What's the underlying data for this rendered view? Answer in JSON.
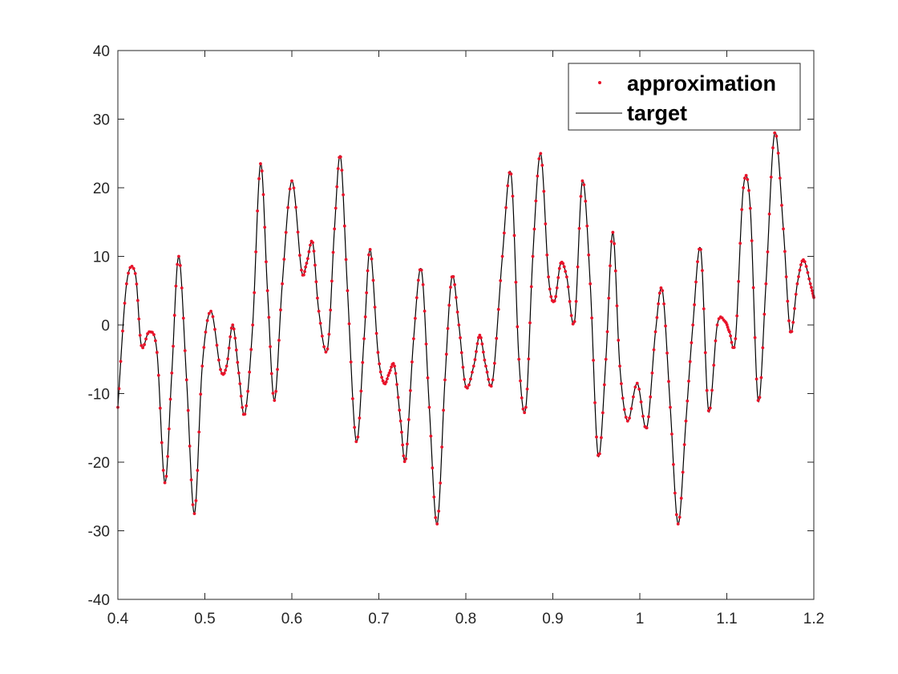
{
  "chart_data": {
    "type": "line",
    "title": "",
    "xlabel": "",
    "ylabel": "",
    "xlim": [
      0.4,
      1.2
    ],
    "ylim": [
      -40,
      40
    ],
    "x_ticks": [
      "0.4",
      "0.5",
      "0.6",
      "0.7",
      "0.8",
      "0.9",
      "1",
      "1.1",
      "1.2"
    ],
    "y_ticks": [
      "-40",
      "-30",
      "-20",
      "-10",
      "0",
      "10",
      "20",
      "30",
      "40"
    ],
    "grid": false,
    "legend_position": "top-right",
    "series": [
      {
        "name": "approximation",
        "style": "markers",
        "color": "#e8132a",
        "x": [
          0.4,
          0.41,
          0.42,
          0.427,
          0.436,
          0.445,
          0.454,
          0.462,
          0.47,
          0.479,
          0.488,
          0.497,
          0.507,
          0.518,
          0.525,
          0.532,
          0.539,
          0.546,
          0.555,
          0.564,
          0.572,
          0.58,
          0.589,
          0.6,
          0.611,
          0.617,
          0.624,
          0.631,
          0.641,
          0.649,
          0.656,
          0.664,
          0.674,
          0.683,
          0.69,
          0.699,
          0.706,
          0.712,
          0.718,
          0.725,
          0.731,
          0.74,
          0.749,
          0.758,
          0.767,
          0.776,
          0.784,
          0.792,
          0.8,
          0.809,
          0.816,
          0.823,
          0.831,
          0.842,
          0.852,
          0.861,
          0.869,
          0.877,
          0.886,
          0.895,
          0.902,
          0.909,
          0.916,
          0.925,
          0.934,
          0.943,
          0.952,
          0.961,
          0.969,
          0.977,
          0.986,
          0.997,
          1.008,
          1.018,
          1.026,
          1.035,
          1.044,
          1.053,
          1.061,
          1.07,
          1.079,
          1.089,
          1.098,
          1.103,
          1.11,
          1.119,
          1.127,
          1.136,
          1.145,
          1.155,
          1.165,
          1.173,
          1.181,
          1.188,
          1.196,
          1.2
        ],
        "y": [
          -12,
          6,
          7.5,
          -3,
          -1,
          -4,
          -23,
          -7,
          10,
          -8,
          -27.5,
          -6,
          2,
          -6.5,
          -6,
          0,
          -7,
          -13,
          0,
          23.5,
          5,
          -11,
          6,
          21,
          8,
          9,
          12,
          2,
          -3.5,
          14,
          24.5,
          5,
          -17,
          -2,
          11,
          -4,
          -8.5,
          -7,
          -6,
          -14,
          -19.5,
          -2,
          8,
          -12,
          -29,
          -8,
          7,
          0,
          -9,
          -6,
          -1.5,
          -6,
          -8,
          10,
          22,
          -5,
          -12,
          10,
          25,
          7,
          3.5,
          9,
          7,
          0.5,
          21,
          6,
          -19,
          -5,
          13.5,
          -6,
          -14,
          -8.5,
          -15,
          -1,
          5,
          -12,
          -29,
          -14,
          0,
          11,
          -12.5,
          0,
          0.5,
          -1,
          -2,
          20,
          17,
          -11,
          6,
          28,
          14,
          -1,
          6,
          9.5,
          6,
          4
        ]
      },
      {
        "name": "target",
        "style": "line",
        "color": "#000000",
        "x": [
          0.4,
          0.41,
          0.42,
          0.427,
          0.436,
          0.445,
          0.454,
          0.462,
          0.47,
          0.479,
          0.488,
          0.497,
          0.507,
          0.518,
          0.525,
          0.532,
          0.539,
          0.546,
          0.555,
          0.564,
          0.572,
          0.58,
          0.589,
          0.6,
          0.611,
          0.617,
          0.624,
          0.631,
          0.641,
          0.649,
          0.656,
          0.664,
          0.674,
          0.683,
          0.69,
          0.699,
          0.706,
          0.712,
          0.718,
          0.725,
          0.731,
          0.74,
          0.749,
          0.758,
          0.767,
          0.776,
          0.784,
          0.792,
          0.8,
          0.809,
          0.816,
          0.823,
          0.831,
          0.842,
          0.852,
          0.861,
          0.869,
          0.877,
          0.886,
          0.895,
          0.902,
          0.909,
          0.916,
          0.925,
          0.934,
          0.943,
          0.952,
          0.961,
          0.969,
          0.977,
          0.986,
          0.997,
          1.008,
          1.018,
          1.026,
          1.035,
          1.044,
          1.053,
          1.061,
          1.07,
          1.079,
          1.089,
          1.098,
          1.103,
          1.11,
          1.119,
          1.127,
          1.136,
          1.145,
          1.155,
          1.165,
          1.173,
          1.181,
          1.188,
          1.196,
          1.2
        ],
        "y": [
          -12,
          6,
          7.5,
          -3,
          -1,
          -4,
          -23,
          -7,
          10,
          -8,
          -27.5,
          -6,
          2,
          -6.5,
          -6,
          0,
          -7,
          -13,
          0,
          23.5,
          5,
          -11,
          6,
          21,
          8,
          9,
          12,
          2,
          -3.5,
          14,
          24.5,
          5,
          -17,
          -2,
          11,
          -4,
          -8.5,
          -7,
          -6,
          -14,
          -19.5,
          -2,
          8,
          -12,
          -29,
          -8,
          7,
          0,
          -9,
          -6,
          -1.5,
          -6,
          -8,
          10,
          22,
          -5,
          -12,
          10,
          25,
          7,
          3.5,
          9,
          7,
          0.5,
          21,
          6,
          -19,
          -5,
          13.5,
          -6,
          -14,
          -8.5,
          -15,
          -1,
          5,
          -12,
          -29,
          -14,
          0,
          11,
          -12.5,
          0,
          0.5,
          -1,
          -2,
          20,
          17,
          -11,
          6,
          28,
          14,
          -1,
          6,
          9.5,
          6,
          4
        ]
      }
    ]
  }
}
